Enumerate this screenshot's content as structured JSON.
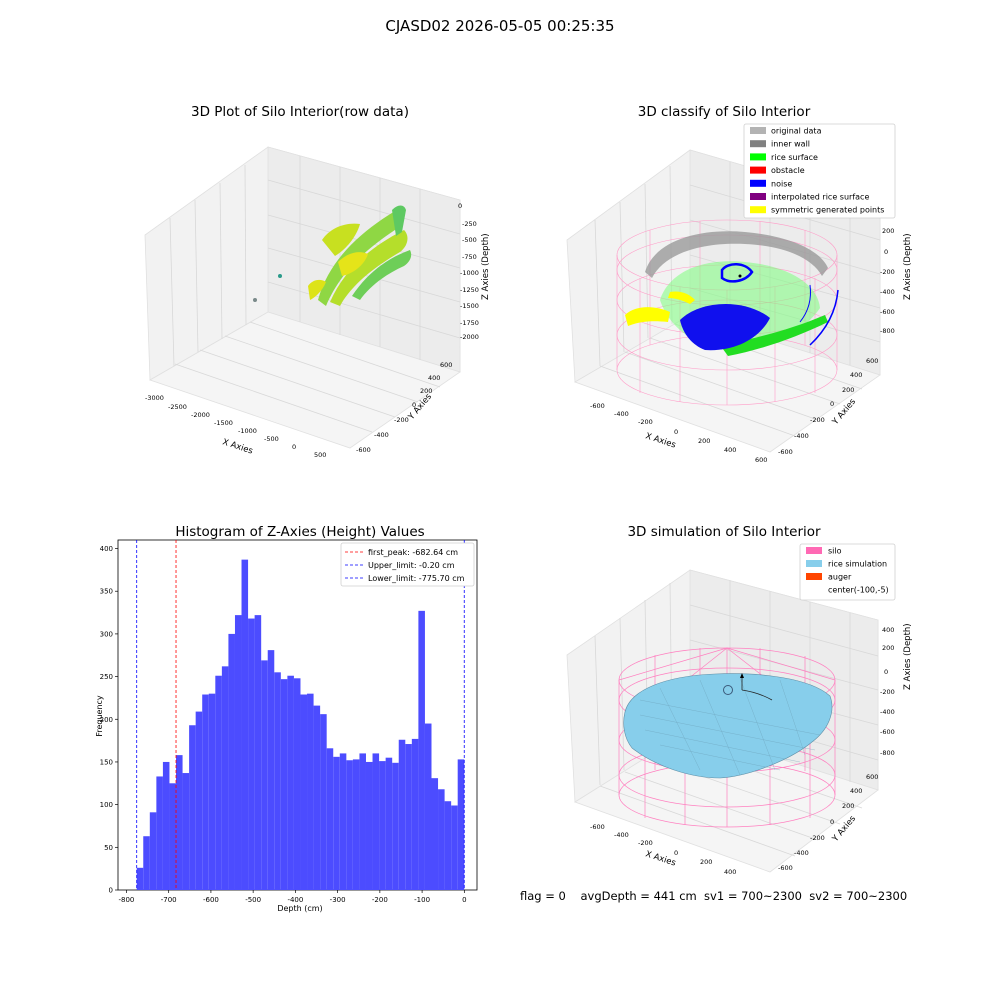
{
  "figure": {
    "suptitle": "CJASD02 2026-05-05 00:25:35",
    "footer": "flag = 0    avgDepth = 441 cm  sv1 = 700~2300  sv2 = 700~2300"
  },
  "panels": {
    "raw": {
      "title": "3D Plot of Silo Interior(row data)",
      "xlabel": "X Axies",
      "ylabel": "Y Axies",
      "zlabel": "Z Axies (Depth)",
      "xticks": [
        "-3000",
        "-2500",
        "-2000",
        "-1500",
        "-1000",
        "-500",
        "0",
        "500"
      ],
      "yticks": [
        "-600",
        "-400",
        "-200",
        "0",
        "200",
        "400",
        "600"
      ],
      "zticks": [
        "0",
        "-250",
        "-500",
        "-750",
        "-1000",
        "-1250",
        "-1500",
        "-1750",
        "-2000"
      ]
    },
    "classify": {
      "title": "3D classify of Silo Interior",
      "xlabel": "X Axies",
      "ylabel": "Y Axies",
      "zlabel": "Z Axies (Depth)",
      "xticks": [
        "-600",
        "-400",
        "-200",
        "0",
        "200",
        "400",
        "600"
      ],
      "yticks": [
        "-600",
        "-400",
        "-200",
        "0",
        "200",
        "400",
        "600"
      ],
      "zticks": [
        "200",
        "0",
        "-200",
        "-400",
        "-600",
        "-800"
      ],
      "zticks_partial": [
        "0"
      ],
      "legend": [
        {
          "label": "original data",
          "color": "#b3b3b3"
        },
        {
          "label": "inner wall",
          "color": "#808080"
        },
        {
          "label": "rice surface",
          "color": "#00ff00"
        },
        {
          "label": "obstacle",
          "color": "#ff0000"
        },
        {
          "label": "noise",
          "color": "#0000ff"
        },
        {
          "label": "interpolated rice surface",
          "color": "#800080"
        },
        {
          "label": "symmetric generated points",
          "color": "#ffff00"
        }
      ]
    },
    "simulation": {
      "title": "3D simulation of Silo Interior",
      "xlabel": "X Axies",
      "ylabel": "Y Axies",
      "zlabel": "Z Axies (Depth)",
      "xticks": [
        "-600",
        "-400",
        "-200",
        "0",
        "200",
        "400"
      ],
      "yticks": [
        "-600",
        "-400",
        "-200",
        "0",
        "200",
        "400",
        "600"
      ],
      "zticks": [
        "400",
        "200",
        "0",
        "-200",
        "-400",
        "-600",
        "-800"
      ],
      "legend": [
        {
          "label": "silo",
          "color": "#ff69b4"
        },
        {
          "label": "rice simulation",
          "color": "#87ceeb"
        },
        {
          "label": "auger",
          "color": "#ff4500"
        },
        {
          "label": "center(-100,-5)",
          "color": ""
        }
      ]
    }
  },
  "chart_data": [
    {
      "type": "scatter",
      "title": "3D Plot of Silo Interior(row data)",
      "xlabel": "X Axies",
      "ylabel": "Y Axies",
      "zlabel": "Z Axies (Depth)",
      "xlim": [
        -3000,
        600
      ],
      "ylim": [
        -700,
        700
      ],
      "zlim": [
        -2100,
        0
      ]
    },
    {
      "type": "scatter",
      "title": "3D classify of Silo Interior",
      "xlabel": "X Axies",
      "ylabel": "Y Axies",
      "zlabel": "Z Axies (Depth)",
      "xlim": [
        -700,
        650
      ],
      "ylim": [
        -700,
        650
      ],
      "zlim": [
        -900,
        300
      ],
      "series": [
        {
          "name": "original data"
        },
        {
          "name": "inner wall"
        },
        {
          "name": "rice surface"
        },
        {
          "name": "obstacle"
        },
        {
          "name": "noise"
        },
        {
          "name": "interpolated rice surface"
        },
        {
          "name": "symmetric generated points"
        }
      ]
    },
    {
      "type": "bar",
      "title": "Histogram of Z-Axies (Height) Values",
      "xlabel": "Depth (cm)",
      "ylabel": "Frequency",
      "xlim": [
        -820,
        30
      ],
      "ylim": [
        0,
        410
      ],
      "xticks": [
        -800,
        -700,
        -600,
        -500,
        -400,
        -300,
        -200,
        -100,
        0
      ],
      "yticks": [
        0,
        50,
        100,
        150,
        200,
        250,
        300,
        350,
        400
      ],
      "bin_start": -775.7,
      "bin_width": 15.51,
      "values": [
        26,
        63,
        91,
        133,
        150,
        125,
        158,
        137,
        193,
        209,
        229,
        230,
        251,
        262,
        300,
        322,
        387,
        318,
        322,
        269,
        281,
        255,
        247,
        251,
        248,
        229,
        230,
        216,
        206,
        166,
        156,
        160,
        152,
        153,
        160,
        150,
        160,
        151,
        155,
        149,
        176,
        171,
        177,
        327,
        195,
        131,
        118,
        104,
        99,
        153
      ],
      "vlines": [
        {
          "name": "first_peak: -682.64 cm",
          "x": -682.64,
          "color": "#ff0000"
        },
        {
          "name": "Upper_limit: -0.20 cm",
          "x": -0.2,
          "color": "#0000ff"
        },
        {
          "name": "Lower_limit: -775.70 cm",
          "x": -775.7,
          "color": "#0000ff"
        }
      ],
      "bar_color": "#4c4cff",
      "legend_position": "top-right"
    },
    {
      "type": "area",
      "title": "3D simulation of Silo Interior",
      "xlabel": "X Axies",
      "ylabel": "Y Axies",
      "zlabel": "Z Axies (Depth)",
      "xlim": [
        -700,
        500
      ],
      "ylim": [
        -700,
        650
      ],
      "zlim": [
        -900,
        450
      ],
      "series": [
        {
          "name": "silo"
        },
        {
          "name": "rice simulation"
        },
        {
          "name": "auger"
        },
        {
          "name": "center(-100,-5)"
        }
      ]
    }
  ]
}
